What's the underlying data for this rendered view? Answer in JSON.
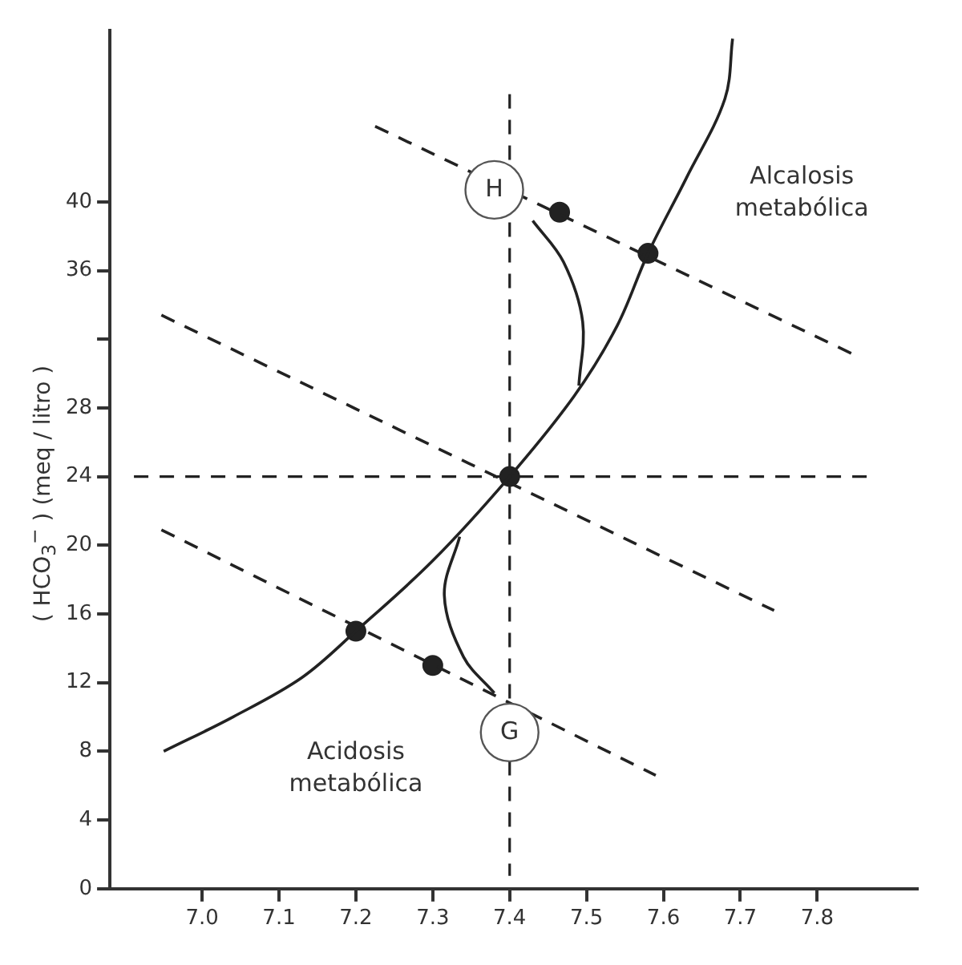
{
  "chart_data": {
    "type": "line",
    "ylabel": "( HCO$_{3}$$^{−}$ ) (meq / litro )",
    "xlim": [
      6.88,
      7.93
    ],
    "ylim": [
      0,
      50
    ],
    "xticks": [
      {
        "value": 7.0,
        "label": "7.0"
      },
      7.1,
      7.2,
      7.3,
      7.4,
      7.5,
      7.6,
      7.7,
      7.8
    ],
    "yticks": [
      0,
      4,
      8,
      12,
      16,
      20,
      24,
      28,
      {
        "value": 32,
        "label": null
      },
      36,
      40
    ],
    "grid": false,
    "legend": false,
    "marker": "none",
    "series": [
      {
        "type": "line",
        "color": "#222222",
        "line_style": "solid",
        "x": [
          6.95,
          7.04,
          7.13,
          7.2,
          7.3,
          7.4,
          7.484,
          7.54,
          7.58,
          7.63,
          7.68,
          7.69
        ],
        "values": [
          8,
          10,
          12.3,
          15,
          19.1,
          24,
          28.7,
          32.8,
          37,
          41.4,
          46,
          49.5
        ]
      },
      {
        "type": "line",
        "color": "#222222",
        "line_style": "solid",
        "x": [
          7.43,
          7.47,
          7.495,
          7.49
        ],
        "values": [
          38.9,
          36.5,
          33,
          29.3
        ]
      },
      {
        "type": "line",
        "color": "#222222",
        "line_style": "solid",
        "x": [
          7.335,
          7.315,
          7.34,
          7.38
        ],
        "values": [
          20.5,
          17.1,
          13.5,
          11.4
        ]
      },
      {
        "type": "line",
        "color": "#222222",
        "line_style": "dashed",
        "x": [
          7.225,
          7.848
        ],
        "values": [
          44.4,
          31.1
        ]
      },
      {
        "type": "line",
        "color": "#222222",
        "line_style": "dashed",
        "x": [
          6.947,
          7.744
        ],
        "values": [
          33.4,
          16.2
        ]
      },
      {
        "type": "line",
        "color": "#222222",
        "line_style": "dashed",
        "x": [
          6.947,
          7.59
        ],
        "values": [
          20.9,
          6.6
        ]
      },
      {
        "type": "scatter",
        "color": "#222222",
        "marker": "circle",
        "x": [
          7.4,
          7.58,
          7.465,
          7.2,
          7.3
        ],
        "values": [
          24,
          37,
          39.4,
          15,
          13
        ]
      }
    ],
    "ref_lines": [
      {
        "axis": "x",
        "value": 7.4,
        "color": "#222222",
        "line_style": "dashed"
      },
      {
        "axis": "y",
        "value": 24,
        "color": "#222222",
        "line_style": "dashed"
      }
    ],
    "annotations": [
      {
        "text": "H",
        "x": 7.38,
        "y": 40.7
      },
      {
        "text": "G",
        "x": 7.4,
        "y": 9.1
      },
      "Alcalosis metabólica",
      "Acidosis metabólica"
    ]
  }
}
